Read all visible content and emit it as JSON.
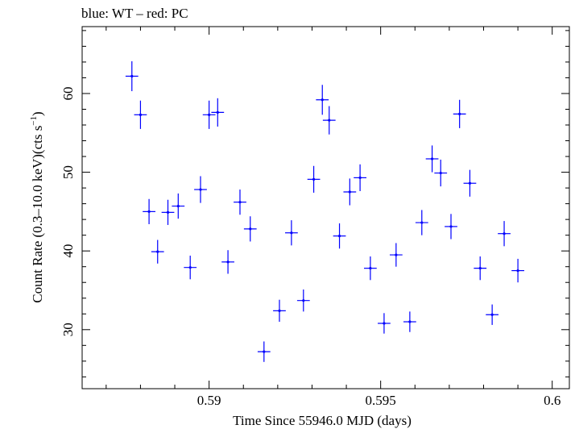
{
  "chart_data": {
    "type": "scatter",
    "title": "blue: WT – red: PC",
    "xlabel": "Time Since 55946.0 MJD (days)",
    "ylabel": "Count Rate (0.3–10.0 keV)(cts s",
    "ylabel_sup": "−1",
    "ylabel_tail": ")",
    "xlim": [
      0.5863,
      0.6005
    ],
    "ylim": [
      22.5,
      68.5
    ],
    "x_ticks_major": [
      0.59,
      0.595,
      0.6
    ],
    "x_tick_labels": [
      "0.59",
      "0.595",
      "0.6"
    ],
    "y_ticks_major": [
      30,
      40,
      50,
      60
    ],
    "y_tick_labels": [
      "30",
      "40",
      "50",
      "60"
    ],
    "grid": false,
    "colors": {
      "wt": "#0000ff",
      "axes": "#000000"
    },
    "series": [
      {
        "mode": "WT",
        "color": "#0000ff",
        "x_halfwidth": 0.000185,
        "points": [
          {
            "x": 0.58775,
            "y": 62.2,
            "err": 1.9
          },
          {
            "x": 0.588,
            "y": 57.3,
            "err": 1.8
          },
          {
            "x": 0.58825,
            "y": 45.0,
            "err": 1.6
          },
          {
            "x": 0.5885,
            "y": 39.9,
            "err": 1.5
          },
          {
            "x": 0.5888,
            "y": 44.9,
            "err": 1.6
          },
          {
            "x": 0.5891,
            "y": 45.7,
            "err": 1.6
          },
          {
            "x": 0.58945,
            "y": 37.9,
            "err": 1.5
          },
          {
            "x": 0.58975,
            "y": 47.8,
            "err": 1.7
          },
          {
            "x": 0.59,
            "y": 57.3,
            "err": 1.8
          },
          {
            "x": 0.59025,
            "y": 57.6,
            "err": 1.8
          },
          {
            "x": 0.59055,
            "y": 38.6,
            "err": 1.5
          },
          {
            "x": 0.5909,
            "y": 46.2,
            "err": 1.6
          },
          {
            "x": 0.5912,
            "y": 42.8,
            "err": 1.6
          },
          {
            "x": 0.5916,
            "y": 27.2,
            "err": 1.3
          },
          {
            "x": 0.59205,
            "y": 32.4,
            "err": 1.4
          },
          {
            "x": 0.5924,
            "y": 42.3,
            "err": 1.6
          },
          {
            "x": 0.59275,
            "y": 33.7,
            "err": 1.4
          },
          {
            "x": 0.59305,
            "y": 49.1,
            "err": 1.7
          },
          {
            "x": 0.5933,
            "y": 59.2,
            "err": 1.9
          },
          {
            "x": 0.5935,
            "y": 56.6,
            "err": 1.8
          },
          {
            "x": 0.5938,
            "y": 41.9,
            "err": 1.6
          },
          {
            "x": 0.5941,
            "y": 47.5,
            "err": 1.7
          },
          {
            "x": 0.5944,
            "y": 49.3,
            "err": 1.7
          },
          {
            "x": 0.5947,
            "y": 37.8,
            "err": 1.5
          },
          {
            "x": 0.5951,
            "y": 30.8,
            "err": 1.3
          },
          {
            "x": 0.59545,
            "y": 39.5,
            "err": 1.5
          },
          {
            "x": 0.59585,
            "y": 31.0,
            "err": 1.3
          },
          {
            "x": 0.5962,
            "y": 43.6,
            "err": 1.6
          },
          {
            "x": 0.5965,
            "y": 51.7,
            "err": 1.7
          },
          {
            "x": 0.59675,
            "y": 49.9,
            "err": 1.7
          },
          {
            "x": 0.59705,
            "y": 43.1,
            "err": 1.6
          },
          {
            "x": 0.5973,
            "y": 57.4,
            "err": 1.8
          },
          {
            "x": 0.5976,
            "y": 48.6,
            "err": 1.7
          },
          {
            "x": 0.5979,
            "y": 37.8,
            "err": 1.5
          },
          {
            "x": 0.59825,
            "y": 31.9,
            "err": 1.3
          },
          {
            "x": 0.5986,
            "y": 42.2,
            "err": 1.6
          },
          {
            "x": 0.599,
            "y": 37.5,
            "err": 1.5
          }
        ]
      }
    ]
  }
}
